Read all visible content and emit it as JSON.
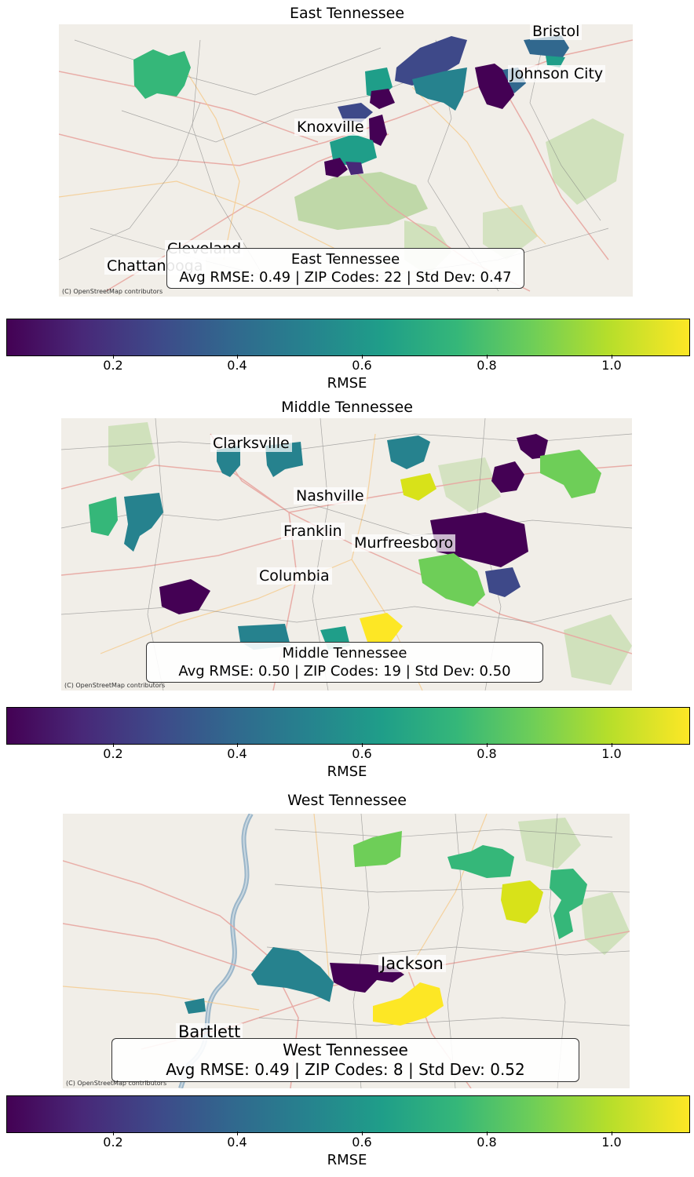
{
  "colorbar": {
    "label": "RMSE",
    "ticks": [
      "0.2",
      "0.4",
      "0.6",
      "0.8",
      "1.0"
    ]
  },
  "credit": "(C) OpenStreetMap contributors",
  "panels": {
    "east": {
      "title": "East Tennessee",
      "cities": [
        "Bristol",
        "Johnson City",
        "Knoxville",
        "Cleveland",
        "Chattanooga"
      ],
      "info": {
        "name": "East Tennessee",
        "stats": "Avg RMSE: 0.49 | ZIP Codes: 22 | Std Dev: 0.47",
        "avg_rmse": 0.49,
        "zip_codes": 22,
        "std_dev": 0.47
      }
    },
    "middle": {
      "title": "Middle Tennessee",
      "cities": [
        "Clarksville",
        "Nashville",
        "Franklin",
        "Murfreesboro",
        "Columbia"
      ],
      "info": {
        "name": "Middle Tennessee",
        "stats": "Avg RMSE: 0.50 | ZIP Codes: 19 | Std Dev: 0.50",
        "avg_rmse": 0.5,
        "zip_codes": 19,
        "std_dev": 0.5
      }
    },
    "west": {
      "title": "West Tennessee",
      "cities": [
        "Jackson",
        "Bartlett"
      ],
      "info": {
        "name": "West Tennessee",
        "stats": "Avg RMSE: 0.49 | ZIP Codes: 8 | Std Dev: 0.52",
        "avg_rmse": 0.49,
        "zip_codes": 8,
        "std_dev": 0.52
      }
    }
  }
}
